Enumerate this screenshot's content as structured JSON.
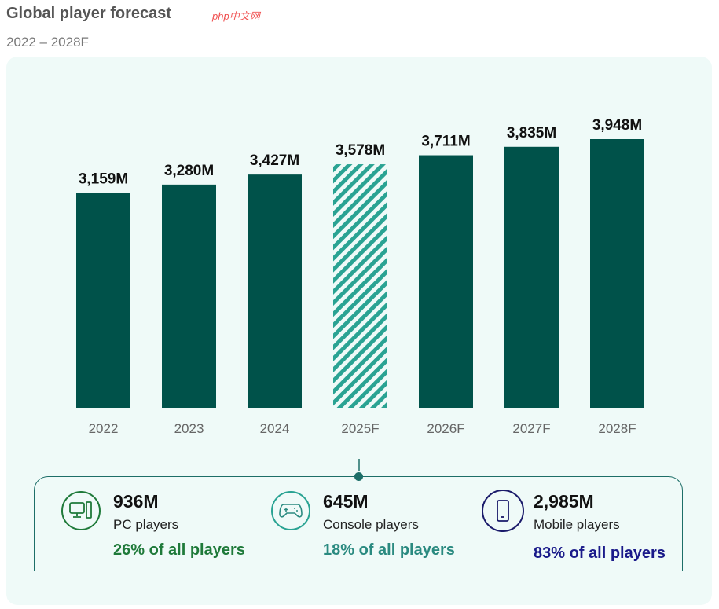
{
  "watermark": "php中文网",
  "chart_data": {
    "type": "bar",
    "title": "Global player forecast",
    "subtitle": "2022 – 2028F",
    "categories": [
      "2022",
      "2023",
      "2024",
      "2025F",
      "2026F",
      "2027F",
      "2028F"
    ],
    "values": [
      3159,
      3280,
      3427,
      3578,
      3711,
      3835,
      3948
    ],
    "data_labels": [
      "3,159M",
      "3,280M",
      "3,427M",
      "3,578M",
      "3,711M",
      "3,835M",
      "3,948M"
    ],
    "highlighted_category": "2025F",
    "ylim": [
      0,
      3948
    ],
    "grid": false,
    "colors": {
      "bar": "#00524a",
      "highlight_stripe": "#2aa393",
      "background": "#effaf8"
    }
  },
  "breakdown": [
    {
      "icon": "pc-icon",
      "value": "936M",
      "label": "PC players",
      "share": "26% of all players",
      "color": "#1f7a3a"
    },
    {
      "icon": "gamepad-icon",
      "value": "645M",
      "label": "Console players",
      "share": "18% of all players",
      "color": "#2a8a80"
    },
    {
      "icon": "mobile-icon",
      "value": "2,985M",
      "label": "Mobile players",
      "share": "83% of all players",
      "color": "#1a1a8a"
    }
  ]
}
